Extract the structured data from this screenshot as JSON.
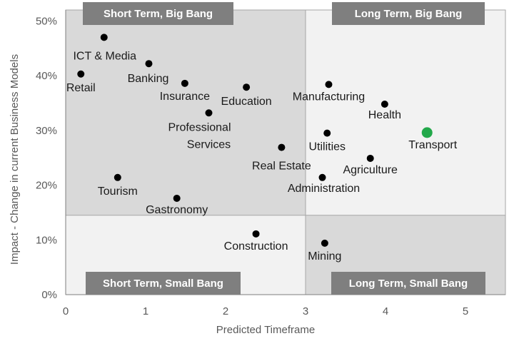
{
  "chart_data": {
    "type": "scatter",
    "xlabel": "Predicted Timeframe",
    "ylabel": "Impact - Change in current Business Models",
    "xlim": [
      0,
      5.5
    ],
    "ylim": [
      0,
      52
    ],
    "x_ticks": [
      "0",
      "1",
      "2",
      "3",
      "4",
      "5"
    ],
    "y_ticks": [
      "0%",
      "10%",
      "20%",
      "30%",
      "40%",
      "50%"
    ],
    "y_tick_values": [
      0,
      10,
      20,
      30,
      40,
      50
    ],
    "grid": false,
    "quadrant_split": {
      "x": 3,
      "y": 14.5
    },
    "quadrants": {
      "top_left": "Short Term, Big Bang",
      "top_right": "Long Term, Big Bang",
      "bottom_left": "Short Term, Small Bang",
      "bottom_right": "Long Term, Small Bang"
    },
    "colors": {
      "point": "#000000",
      "highlight": "#22a84a",
      "quad_top_left": "#d9d9d9",
      "quad_top_right": "#f2f2f2",
      "quad_bottom_left": "#f2f2f2",
      "quad_bottom_right": "#d9d9d9",
      "quad_label_bg": "#7f7f7f"
    },
    "points": [
      {
        "name": "ICT & Media",
        "x": 0.48,
        "y": 47.0
      },
      {
        "name": "Retail",
        "x": 0.19,
        "y": 40.3
      },
      {
        "name": "Banking",
        "x": 1.04,
        "y": 42.2
      },
      {
        "name": "Insurance",
        "x": 1.49,
        "y": 38.6
      },
      {
        "name": "Education",
        "x": 2.26,
        "y": 37.9
      },
      {
        "name": "Professional Services",
        "x": 1.79,
        "y": 33.2
      },
      {
        "name": "Real Estate",
        "x": 2.7,
        "y": 26.9
      },
      {
        "name": "Manufacturing",
        "x": 3.29,
        "y": 38.4
      },
      {
        "name": "Health",
        "x": 3.99,
        "y": 34.8
      },
      {
        "name": "Utilities",
        "x": 3.27,
        "y": 29.5
      },
      {
        "name": "Transport",
        "x": 4.52,
        "y": 29.6,
        "highlight": true
      },
      {
        "name": "Agriculture",
        "x": 3.81,
        "y": 24.9
      },
      {
        "name": "Administration",
        "x": 3.21,
        "y": 21.4
      },
      {
        "name": "Tourism",
        "x": 0.65,
        "y": 21.4
      },
      {
        "name": "Gastronomy",
        "x": 1.39,
        "y": 17.6
      },
      {
        "name": "Construction",
        "x": 2.38,
        "y": 11.1
      },
      {
        "name": "Mining",
        "x": 3.24,
        "y": 9.4
      }
    ]
  }
}
